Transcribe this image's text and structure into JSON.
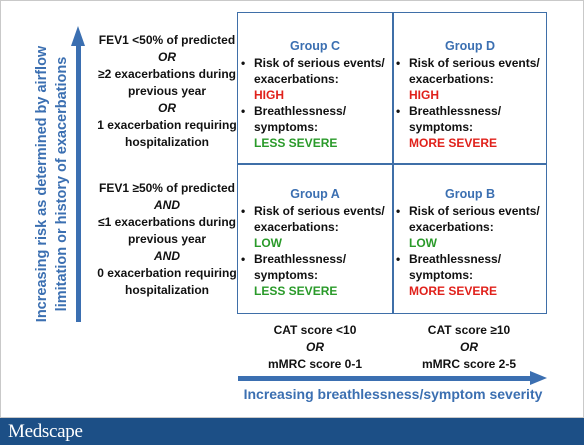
{
  "y_axis": {
    "label": "Increasing risk as determined by airflow limitation or history of exacerbations"
  },
  "x_axis": {
    "label": "Increasing breathlessness/symptom severity"
  },
  "risk_criteria": {
    "high": [
      "FEV1 <50% of predicted",
      "OR",
      "≥2 exacerbations during previous year",
      "OR",
      "1 exacerbation requiring hospitalization"
    ],
    "low": [
      "FEV1 ≥50% of predicted",
      "AND",
      "≤1 exacerbations during previous year",
      "AND",
      "0 exacerbation requiring hospitalization"
    ]
  },
  "groups": {
    "C": {
      "name": "Group C",
      "risk_label": "Risk of serious events/ exacerbations:",
      "risk_value": "HIGH",
      "symptom_label": "Breathlessness/ symptoms:",
      "symptom_value": "LESS SEVERE"
    },
    "D": {
      "name": "Group D",
      "risk_label": "Risk of serious events/ exacerbations:",
      "risk_value": "HIGH",
      "symptom_label": "Breathlessness/ symptoms:",
      "symptom_value": "MORE SEVERE"
    },
    "A": {
      "name": "Group A",
      "risk_label": "Risk of serious events/ exacerbations:",
      "risk_value": "LOW",
      "symptom_label": "Breathlessness/ symptoms:",
      "symptom_value": "LESS SEVERE"
    },
    "B": {
      "name": "Group B",
      "risk_label": "Risk of serious events/ exacerbations:",
      "risk_value": "LOW",
      "symptom_label": "Breathlessness/ symptoms:",
      "symptom_value": "MORE SEVERE"
    }
  },
  "symptom_criteria": {
    "less": [
      "CAT score <10",
      "OR",
      "mMRC score 0-1"
    ],
    "more": [
      "CAT score ≥10",
      "OR",
      "mMRC score 2-5"
    ]
  },
  "bullet": "•",
  "footer": {
    "logo": "Medscape"
  },
  "colors": {
    "axis_blue": "#3b6fb1",
    "high_red": "#e0211b",
    "low_green": "#2a9a2a",
    "footer_bg": "#1c4f86"
  }
}
